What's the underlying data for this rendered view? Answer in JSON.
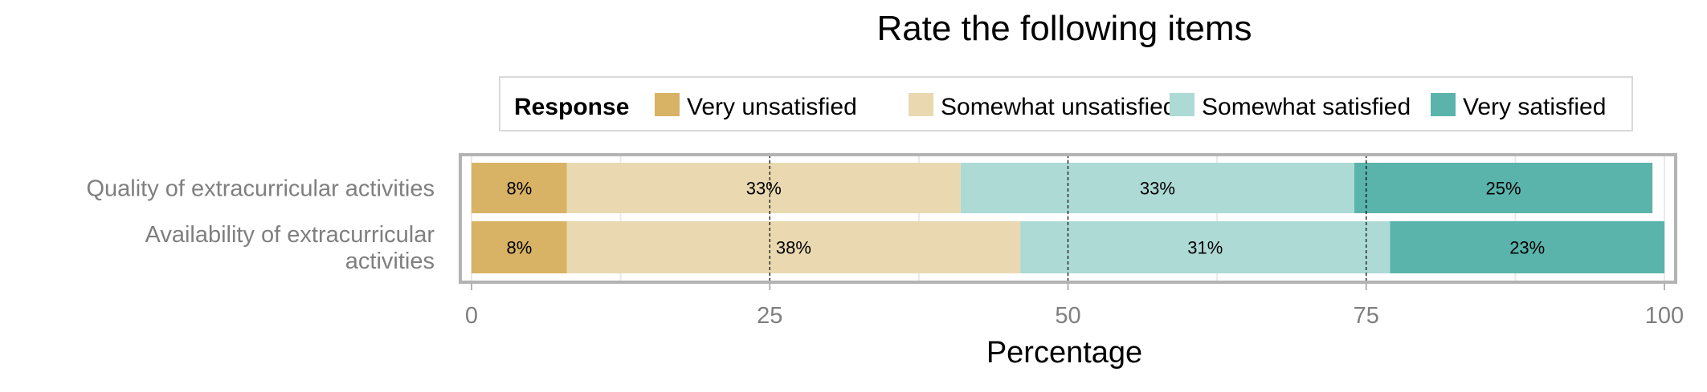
{
  "chart_data": {
    "type": "bar",
    "orientation": "horizontal",
    "stacked": true,
    "title": "Rate the following items",
    "xlabel": "Percentage",
    "ylabel": "",
    "xlim": [
      0,
      100
    ],
    "xticks": [
      0,
      25,
      50,
      75,
      100
    ],
    "grid": true,
    "legend": {
      "title": "Response",
      "position": "top",
      "entries": [
        "Very unsatisfied",
        "Somewhat unsatisfied",
        "Somewhat satisfied",
        "Very satisfied"
      ]
    },
    "categories": [
      [
        "Quality of extracurricular activities"
      ],
      [
        "Availability of extracurricular",
        "activities"
      ]
    ],
    "series": [
      {
        "name": "Very unsatisfied",
        "color": "#D8B365",
        "values": [
          8,
          8
        ],
        "labels": [
          "8%",
          "8%"
        ]
      },
      {
        "name": "Somewhat unsatisfied",
        "color": "#EAD9B0",
        "values": [
          33,
          38
        ],
        "labels": [
          "33%",
          "38%"
        ]
      },
      {
        "name": "Somewhat satisfied",
        "color": "#ADDAD5",
        "values": [
          33,
          31
        ],
        "labels": [
          "33%",
          "31%"
        ]
      },
      {
        "name": "Very satisfied",
        "color": "#5AB4AC",
        "values": [
          25,
          23
        ],
        "labels": [
          "25%",
          "23%"
        ]
      }
    ]
  }
}
